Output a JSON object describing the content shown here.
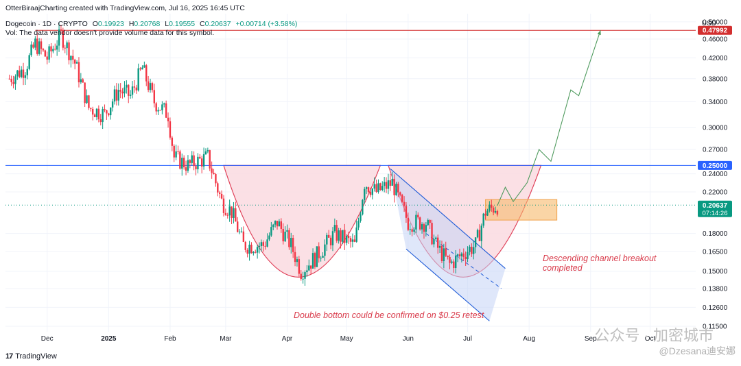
{
  "header": {
    "credit": "OtterBiraajCharting created with TradingView.com, Jul 16, 2025 16:45 UTC",
    "symbol": "Dogecoin · 1D · CRYPTO",
    "o_label": "O",
    "o_value": "0.19923",
    "h_label": "H",
    "h_value": "0.20768",
    "l_label": "L",
    "l_value": "0.19555",
    "c_label": "C",
    "c_value": "0.20637",
    "change": "+0.00714 (+3.58%)",
    "volume_note": "Vol: The data vendor doesn't provide volume data for this symbol."
  },
  "currency": "USD",
  "footer": {
    "brand": "TradingView"
  },
  "watermark": {
    "text": "公众号 · 加密城市",
    "handle": "@Dzesana迪安娜"
  },
  "colors": {
    "up": "#089981",
    "down": "#f23645",
    "blue_line": "#2962ff",
    "red_line": "#d32f2f",
    "pattern_fill": "#fadbe1",
    "pattern_stroke": "#e0425a",
    "channel": "#1e5bd7",
    "box": "#f7b96b",
    "projection": "#4e9a5d"
  },
  "chart_data": {
    "type": "candlestick",
    "title": "",
    "y_axis_ticks": [
      "0.50000",
      "0.46000",
      "0.42000",
      "0.38000",
      "0.34000",
      "0.30000",
      "0.27000",
      "0.24000",
      "0.22000",
      "0.18000",
      "0.16500",
      "0.15000",
      "0.13800",
      "0.12600",
      "0.11500"
    ],
    "x_axis_ticks": [
      "Dec",
      "2025",
      "Feb",
      "Mar",
      "Apr",
      "May",
      "Jun",
      "Jul",
      "Aug",
      "Sep",
      "Oct"
    ],
    "y_scale": "log",
    "ylim": [
      0.112,
      0.52
    ],
    "grid": true,
    "price_labels": [
      {
        "value": 0.47992,
        "text": "0.47992",
        "color": "#d32f2f"
      },
      {
        "value": 0.25,
        "text": "0.25000",
        "color": "#2962ff"
      },
      {
        "value": 0.20637,
        "text": "0.20637",
        "sub": "07:14:26",
        "color": "#089981"
      }
    ],
    "horizontal_levels": [
      {
        "value": 0.47992,
        "color": "red"
      },
      {
        "value": 0.25,
        "color": "blue"
      }
    ],
    "annotations": [
      {
        "text": "Descending channel breakout completed"
      },
      {
        "text": "Double bottom could be confirmed on $0.25 retest"
      }
    ],
    "close_path": [
      {
        "date": "2024-11-12",
        "close": 0.38
      },
      {
        "date": "2024-11-20",
        "close": 0.4
      },
      {
        "date": "2024-11-25",
        "close": 0.45
      },
      {
        "date": "2024-12-01",
        "close": 0.42
      },
      {
        "date": "2024-12-08",
        "close": 0.47
      },
      {
        "date": "2024-12-15",
        "close": 0.41
      },
      {
        "date": "2024-12-22",
        "close": 0.33
      },
      {
        "date": "2024-12-30",
        "close": 0.32
      },
      {
        "date": "2025-01-06",
        "close": 0.36
      },
      {
        "date": "2025-01-12",
        "close": 0.35
      },
      {
        "date": "2025-01-18",
        "close": 0.4
      },
      {
        "date": "2025-01-24",
        "close": 0.34
      },
      {
        "date": "2025-01-31",
        "close": 0.32
      },
      {
        "date": "2025-02-03",
        "close": 0.26
      },
      {
        "date": "2025-02-10",
        "close": 0.25
      },
      {
        "date": "2025-02-20",
        "close": 0.26
      },
      {
        "date": "2025-02-27",
        "close": 0.21
      },
      {
        "date": "2025-03-04",
        "close": 0.2
      },
      {
        "date": "2025-03-10",
        "close": 0.17
      },
      {
        "date": "2025-03-20",
        "close": 0.17
      },
      {
        "date": "2025-03-27",
        "close": 0.19
      },
      {
        "date": "2025-04-03",
        "close": 0.17
      },
      {
        "date": "2025-04-08",
        "close": 0.15
      },
      {
        "date": "2025-04-15",
        "close": 0.16
      },
      {
        "date": "2025-04-25",
        "close": 0.18
      },
      {
        "date": "2025-05-05",
        "close": 0.17
      },
      {
        "date": "2025-05-10",
        "close": 0.23
      },
      {
        "date": "2025-05-16",
        "close": 0.22
      },
      {
        "date": "2025-05-24",
        "close": 0.23
      },
      {
        "date": "2025-06-01",
        "close": 0.19
      },
      {
        "date": "2025-06-10",
        "close": 0.19
      },
      {
        "date": "2025-06-15",
        "close": 0.17
      },
      {
        "date": "2025-06-22",
        "close": 0.155
      },
      {
        "date": "2025-06-30",
        "close": 0.165
      },
      {
        "date": "2025-07-05",
        "close": 0.17
      },
      {
        "date": "2025-07-10",
        "close": 0.2
      },
      {
        "date": "2025-07-16",
        "close": 0.206
      }
    ],
    "projection_path": [
      {
        "date": "2025-07-16",
        "close": 0.206
      },
      {
        "date": "2025-07-20",
        "close": 0.225
      },
      {
        "date": "2025-07-24",
        "close": 0.21
      },
      {
        "date": "2025-07-31",
        "close": 0.23
      },
      {
        "date": "2025-08-06",
        "close": 0.27
      },
      {
        "date": "2025-08-12",
        "close": 0.255
      },
      {
        "date": "2025-08-22",
        "close": 0.36
      },
      {
        "date": "2025-08-26",
        "close": 0.35
      },
      {
        "date": "2025-09-06",
        "close": 0.48
      }
    ]
  }
}
